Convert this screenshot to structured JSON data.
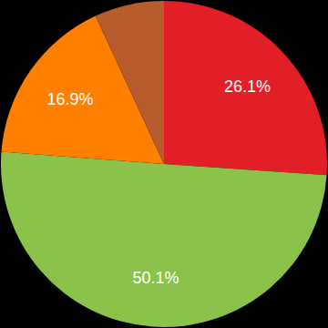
{
  "chart_data": {
    "type": "pie",
    "values": [
      26.1,
      50.1,
      16.9,
      6.9
    ],
    "value_labels": [
      "26.1%",
      "50.1%",
      "16.9%",
      null
    ],
    "colors": [
      "#e21f26",
      "#8bc34a",
      "#ff8000",
      "#b75c2c"
    ],
    "data_labels": true
  }
}
